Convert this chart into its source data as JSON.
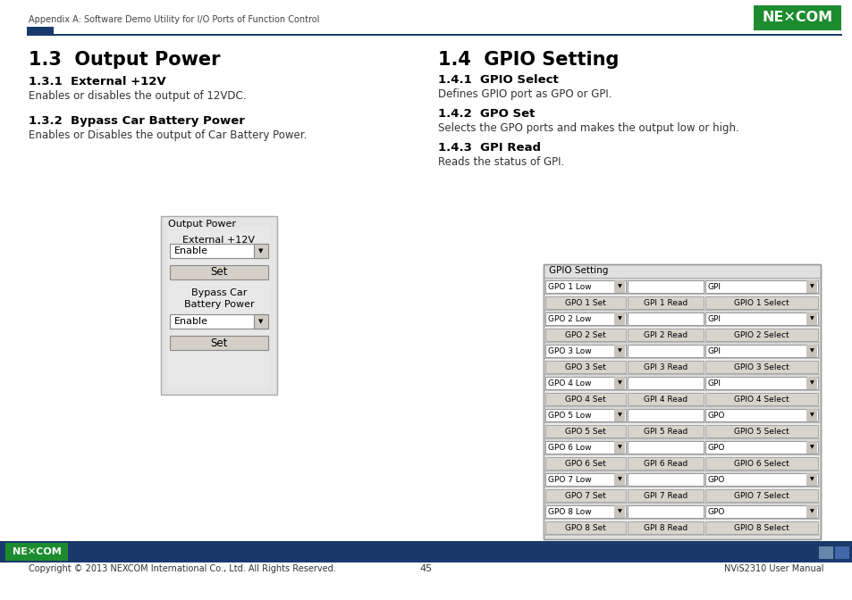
{
  "header_text": "Appendix A: Software Demo Utility for I/O Ports of Function Control",
  "page_bg": "#ffffff",
  "header_line_color": "#1a3a6b",
  "section1_title": "1.3  Output Power",
  "section1_sub1": "1.3.1  External +12V",
  "section1_sub1_body": "Enables or disables the output of 12VDC.",
  "section1_sub2": "1.3.2  Bypass Car Battery Power",
  "section1_sub2_body": "Enables or Disables the output of Car Battery Power.",
  "section2_title": "1.4  GPIO Setting",
  "section2_sub1": "1.4.1  GPIO Select",
  "section2_sub1_body": "Defines GPIO port as GPO or GPI.",
  "section2_sub2": "1.4.2  GPO Set",
  "section2_sub2_body": "Selects the GPO ports and makes the output low or high.",
  "section2_sub3": "1.4.3  GPI Read",
  "section2_sub3_body": "Reads the status of GPI.",
  "footer_bar_color": "#1a3a6b",
  "footer_text_left": "Copyright © 2013 NEXCOM International Co., Ltd. All Rights Reserved.",
  "footer_text_center": "45",
  "footer_text_right": "NViS2310 User Manual",
  "gpio_rows": [
    {
      "left": "GPO 1 Low",
      "mid": "",
      "right": "GPI",
      "type": "header"
    },
    {
      "left": "GPO 1 Set",
      "mid": "GPI 1 Read",
      "right": "GPIO 1 Select",
      "type": "buttons"
    },
    {
      "left": "GPO 2 Low",
      "mid": "",
      "right": "GPI",
      "type": "header"
    },
    {
      "left": "GPO 2 Set",
      "mid": "GPI 2 Read",
      "right": "GPIO 2 Select",
      "type": "buttons"
    },
    {
      "left": "GPO 3 Low",
      "mid": "",
      "right": "GPI",
      "type": "header"
    },
    {
      "left": "GPO 3 Set",
      "mid": "GPI 3 Read",
      "right": "GPIO 3 Select",
      "type": "buttons"
    },
    {
      "left": "GPO 4 Low",
      "mid": "",
      "right": "GPI",
      "type": "header"
    },
    {
      "left": "GPO 4 Set",
      "mid": "GPI 4 Read",
      "right": "GPIO 4 Select",
      "type": "buttons"
    },
    {
      "left": "GPO 5 Low",
      "mid": "",
      "right": "GPO",
      "type": "header"
    },
    {
      "left": "GPO 5 Set",
      "mid": "GPI 5 Read",
      "right": "GPIO 5 Select",
      "type": "buttons"
    },
    {
      "left": "GPO 6 Low",
      "mid": "",
      "right": "GPO",
      "type": "header"
    },
    {
      "left": "GPO 6 Set",
      "mid": "GPI 6 Read",
      "right": "GPIO 6 Select",
      "type": "buttons"
    },
    {
      "left": "GPO 7 Low",
      "mid": "",
      "right": "GPO",
      "type": "header"
    },
    {
      "left": "GPO 7 Set",
      "mid": "GPI 7 Read",
      "right": "GPIO 7 Select",
      "type": "buttons"
    },
    {
      "left": "GPO 8 Low",
      "mid": "",
      "right": "GPO",
      "type": "header"
    },
    {
      "left": "GPO 8 Set",
      "mid": "GPI 8 Read",
      "right": "GPIO 8 Select",
      "type": "buttons"
    }
  ]
}
